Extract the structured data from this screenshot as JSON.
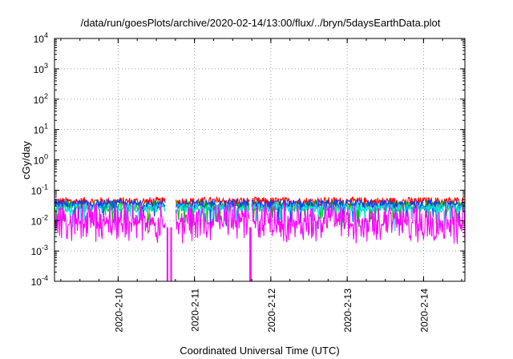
{
  "chart_data": {
    "type": "line",
    "title": "/data/run/goesPlots/archive/2020-02-14/13:00/flux/../bryn/5daysEarthData.plot",
    "xlabel": "Coordinated Universal Time (UTC)",
    "ylabel": "cGy/day",
    "yscale": "log",
    "ylim": [
      0.0001,
      10000
    ],
    "xlim": [
      "2020-02-09 04:00",
      "2020-02-14 13:00"
    ],
    "grid": true,
    "yticks": [
      {
        "value": 0.0001,
        "base": "10",
        "exp": "-4"
      },
      {
        "value": 0.001,
        "base": "10",
        "exp": "-3"
      },
      {
        "value": 0.01,
        "base": "10",
        "exp": "-2"
      },
      {
        "value": 0.1,
        "base": "10",
        "exp": "-1"
      },
      {
        "value": 1,
        "base": "10",
        "exp": "0"
      },
      {
        "value": 10,
        "base": "10",
        "exp": "1"
      },
      {
        "value": 100,
        "base": "10",
        "exp": "2"
      },
      {
        "value": 1000,
        "base": "10",
        "exp": "3"
      },
      {
        "value": 10000,
        "base": "10",
        "exp": "4"
      }
    ],
    "xticks": [
      {
        "label": "2020-2-10",
        "date": "2020-02-10 00:00"
      },
      {
        "label": "2020-2-11",
        "date": "2020-02-11 00:00"
      },
      {
        "label": "2020-2-12",
        "date": "2020-02-12 00:00"
      },
      {
        "label": "2020-2-13",
        "date": "2020-02-13 00:00"
      },
      {
        "label": "2020-2-14",
        "date": "2020-02-14 00:00"
      }
    ],
    "series": [
      {
        "color": "#ff0000",
        "base": 0.042,
        "noise": 0.3,
        "dropFrac": 0.0
      },
      {
        "color": "#00c000",
        "base": 0.03,
        "noise": 0.35,
        "dropFrac": 0.08
      },
      {
        "color": "#0040ff",
        "base": 0.034,
        "noise": 0.3,
        "dropFrac": 0.05
      },
      {
        "color": "#00e0e0",
        "base": 0.026,
        "noise": 0.28,
        "dropFrac": 0.04
      },
      {
        "color": "#ff00ff",
        "base": 0.016,
        "noise": 0.75,
        "dropFrac": 0.45
      }
    ],
    "gaps": [
      {
        "start": "2020-02-10 15:00",
        "end": "2020-02-10 18:00"
      },
      {
        "start": "2020-02-11 17:20",
        "end": "2020-02-11 17:50"
      }
    ],
    "spikes": [
      {
        "date": "2020-02-10 15:30",
        "value": 0.0001
      },
      {
        "date": "2020-02-10 16:40",
        "value": 0.0001
      },
      {
        "date": "2020-02-11 17:30",
        "value": 0.0001
      },
      {
        "date": "2020-02-11 17:40",
        "value": 0.0001
      }
    ]
  }
}
